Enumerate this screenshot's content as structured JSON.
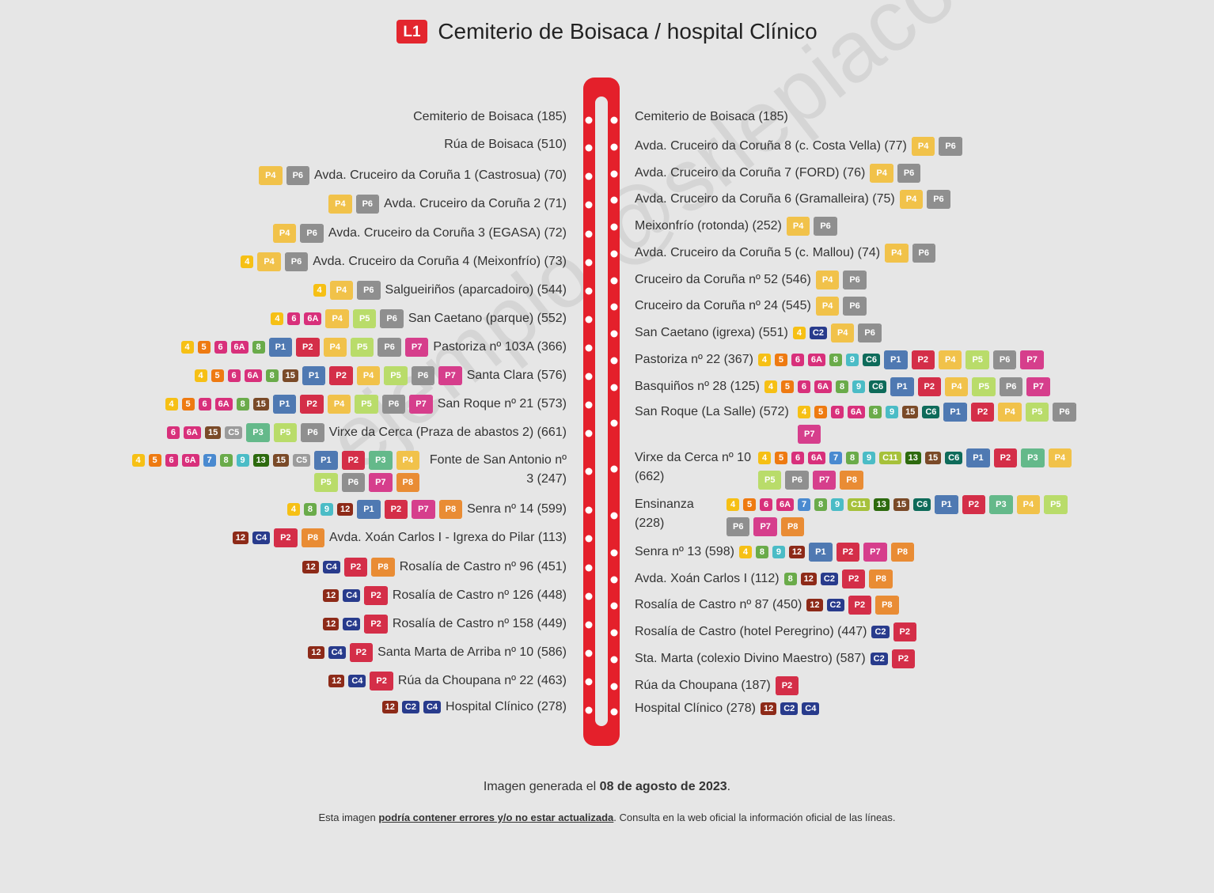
{
  "title": {
    "line": "L1",
    "text": "Cemiterio de Boisaca / hospital Clínico"
  },
  "colors": {
    "4": "#f6c015",
    "5": "#ee7a11",
    "6": "#d8307b",
    "6A": "#d8307b",
    "7": "#4a8ad0",
    "8": "#6aab4a",
    "9": "#4bbcc6",
    "12": "#8d2a18",
    "13": "#2d6a0e",
    "15": "#7a4a28",
    "C2": "#283b8c",
    "C4": "#283b8c",
    "C5": "#9b9b9b",
    "C6": "#0e6b5a",
    "C11": "#a6c13a",
    "P1": "#4f79b2",
    "P2": "#d42e48",
    "P3": "#64b98a",
    "P4": "#f1c24a",
    "P5": "#b9dc6a",
    "P6": "#8f8f8f",
    "P7": "#d63e8c",
    "P8": "#e98c34"
  },
  "left_stops": [
    {
      "name": "Cemiterio de Boisaca (185)",
      "badges": []
    },
    {
      "name": "Rúa de Boisaca (510)",
      "badges": []
    },
    {
      "name": "Avda. Cruceiro da Coruña 1 (Castrosua) (70)",
      "badges": [
        "P4",
        "P6"
      ]
    },
    {
      "name": "Avda. Cruceiro da Coruña 2 (71)",
      "badges": [
        "P4",
        "P6"
      ]
    },
    {
      "name": "Avda. Cruceiro da Coruña 3 (EGASA) (72)",
      "badges": [
        "P4",
        "P6"
      ]
    },
    {
      "name": "Avda. Cruceiro da Coruña 4 (Meixonfrío) (73)",
      "badges": [
        "4",
        "P4",
        "P6"
      ]
    },
    {
      "name": "Salgueiriños (aparcadoiro) (544)",
      "badges": [
        "4",
        "P4",
        "P6"
      ]
    },
    {
      "name": "San Caetano (parque) (552)",
      "badges": [
        "4",
        "6",
        "6A",
        "P4",
        "P5",
        "P6"
      ]
    },
    {
      "name": "Pastoriza nº 103A (366)",
      "badges": [
        "4",
        "5",
        "6",
        "6A",
        "8",
        "P1",
        "P2",
        "P4",
        "P5",
        "P6",
        "P7"
      ]
    },
    {
      "name": "Santa Clara (576)",
      "badges": [
        "4",
        "5",
        "6",
        "6A",
        "8",
        "15",
        "P1",
        "P2",
        "P4",
        "P5",
        "P6",
        "P7"
      ]
    },
    {
      "name": "San Roque nº 21 (573)",
      "badges": [
        "4",
        "5",
        "6",
        "6A",
        "8",
        "15",
        "P1",
        "P2",
        "P4",
        "P5",
        "P6",
        "P7"
      ]
    },
    {
      "name": "Virxe da Cerca (Praza de abastos 2) (661)",
      "badges": [
        "6",
        "6A",
        "15",
        "C5",
        "P3",
        "P5",
        "P6"
      ]
    },
    {
      "name": "Fonte de San Antonio nº 3 (247)",
      "badges": [
        "4",
        "5",
        "6",
        "6A",
        "7",
        "8",
        "9",
        "13",
        "15",
        "C5",
        "P1",
        "P2",
        "P3",
        "P4",
        "P5",
        "P6",
        "P7",
        "P8"
      ]
    },
    {
      "name": "Senra nº 14 (599)",
      "badges": [
        "4",
        "8",
        "9",
        "12",
        "P1",
        "P2",
        "P7",
        "P8"
      ]
    },
    {
      "name": "Avda. Xoán Carlos I - Igrexa do Pilar (113)",
      "badges": [
        "12",
        "C4",
        "P2",
        "P8"
      ]
    },
    {
      "name": "Rosalía de Castro nº 96 (451)",
      "badges": [
        "12",
        "C4",
        "P2",
        "P8"
      ]
    },
    {
      "name": "Rosalía de Castro nº 126 (448)",
      "badges": [
        "12",
        "C4",
        "P2"
      ]
    },
    {
      "name": "Rosalía de Castro nº 158 (449)",
      "badges": [
        "12",
        "C4",
        "P2"
      ]
    },
    {
      "name": "Santa Marta de Arriba nº 10 (586)",
      "badges": [
        "12",
        "C4",
        "P2"
      ]
    },
    {
      "name": "Rúa da Choupana nº 22 (463)",
      "badges": [
        "12",
        "C4",
        "P2"
      ]
    },
    {
      "name": "Hospital Clínico (278)",
      "badges": [
        "12",
        "C2",
        "C4"
      ]
    }
  ],
  "right_stops": [
    {
      "name": "Cemiterio de Boisaca (185)",
      "badges": []
    },
    {
      "name": "Avda. Cruceiro da Coruña 8 (c. Costa Vella) (77)",
      "badges": [
        "P4",
        "P6"
      ]
    },
    {
      "name": "Avda. Cruceiro da Coruña 7 (FORD) (76)",
      "badges": [
        "P4",
        "P6"
      ]
    },
    {
      "name": "Avda. Cruceiro da Coruña 6 (Gramalleira) (75)",
      "badges": [
        "P4",
        "P6"
      ]
    },
    {
      "name": "Meixonfrío (rotonda) (252)",
      "badges": [
        "P4",
        "P6"
      ]
    },
    {
      "name": "Avda. Cruceiro da Coruña 5 (c. Mallou) (74)",
      "badges": [
        "P4",
        "P6"
      ]
    },
    {
      "name": "Cruceiro da Coruña nº 52 (546)",
      "badges": [
        "P4",
        "P6"
      ]
    },
    {
      "name": "Cruceiro da Coruña nº 24 (545)",
      "badges": [
        "P4",
        "P6"
      ]
    },
    {
      "name": "San Caetano (igrexa) (551)",
      "badges": [
        "4",
        "C2",
        "P4",
        "P6"
      ]
    },
    {
      "name": "Pastoriza nº 22 (367)",
      "badges": [
        "4",
        "5",
        "6",
        "6A",
        "8",
        "9",
        "C6",
        "P1",
        "P2",
        "P4",
        "P5",
        "P6",
        "P7"
      ]
    },
    {
      "name": "Basquiños nº 28 (125)",
      "badges": [
        "4",
        "5",
        "6",
        "6A",
        "8",
        "9",
        "C6",
        "P1",
        "P2",
        "P4",
        "P5",
        "P6",
        "P7"
      ]
    },
    {
      "name": "San Roque (La Salle) (572)",
      "badges": [
        "4",
        "5",
        "6",
        "6A",
        "8",
        "9",
        "15",
        "C6",
        "P1",
        "P2",
        "P4",
        "P5",
        "P6",
        "P7"
      ]
    },
    {
      "name": "Virxe da Cerca nº 10 (662)",
      "badges": [
        "4",
        "5",
        "6",
        "6A",
        "7",
        "8",
        "9",
        "C11",
        "13",
        "15",
        "C6",
        "P1",
        "P2",
        "P3",
        "P4",
        "P5",
        "P6",
        "P7",
        "P8"
      ]
    },
    {
      "name": "Ensinanza (228)",
      "badges": [
        "4",
        "5",
        "6",
        "6A",
        "7",
        "8",
        "9",
        "C11",
        "13",
        "15",
        "C6",
        "P1",
        "P2",
        "P3",
        "P4",
        "P5",
        "P6",
        "P7",
        "P8"
      ]
    },
    {
      "name": "Senra nº 13 (598)",
      "badges": [
        "4",
        "8",
        "9",
        "12",
        "P1",
        "P2",
        "P7",
        "P8"
      ]
    },
    {
      "name": "Avda. Xoán Carlos I (112)",
      "badges": [
        "8",
        "12",
        "C2",
        "P2",
        "P8"
      ]
    },
    {
      "name": "Rosalía de Castro nº 87 (450)",
      "badges": [
        "12",
        "C2",
        "P2",
        "P8"
      ]
    },
    {
      "name": "Rosalía de Castro (hotel Peregrino) (447)",
      "badges": [
        "C2",
        "P2"
      ]
    },
    {
      "name": "Sta. Marta (colexio Divino Maestro) (587)",
      "badges": [
        "C2",
        "P2"
      ]
    },
    {
      "name": "Rúa da Choupana (187)",
      "badges": [
        "P2"
      ]
    },
    {
      "name": "Hospital Clínico (278)",
      "badges": [
        "12",
        "C2",
        "C4"
      ]
    }
  ],
  "footer": {
    "prefix": "Imagen generada el ",
    "date": "08 de agosto de 2023",
    "suffix": "."
  },
  "footnote": {
    "prefix": "Esta imagen ",
    "warning": "podría contener errores y/o no estar actualizada",
    "suffix": ". Consulta en la web oficial la información oficial de las líneas."
  },
  "watermark": "ejemplo @srlepiaco"
}
